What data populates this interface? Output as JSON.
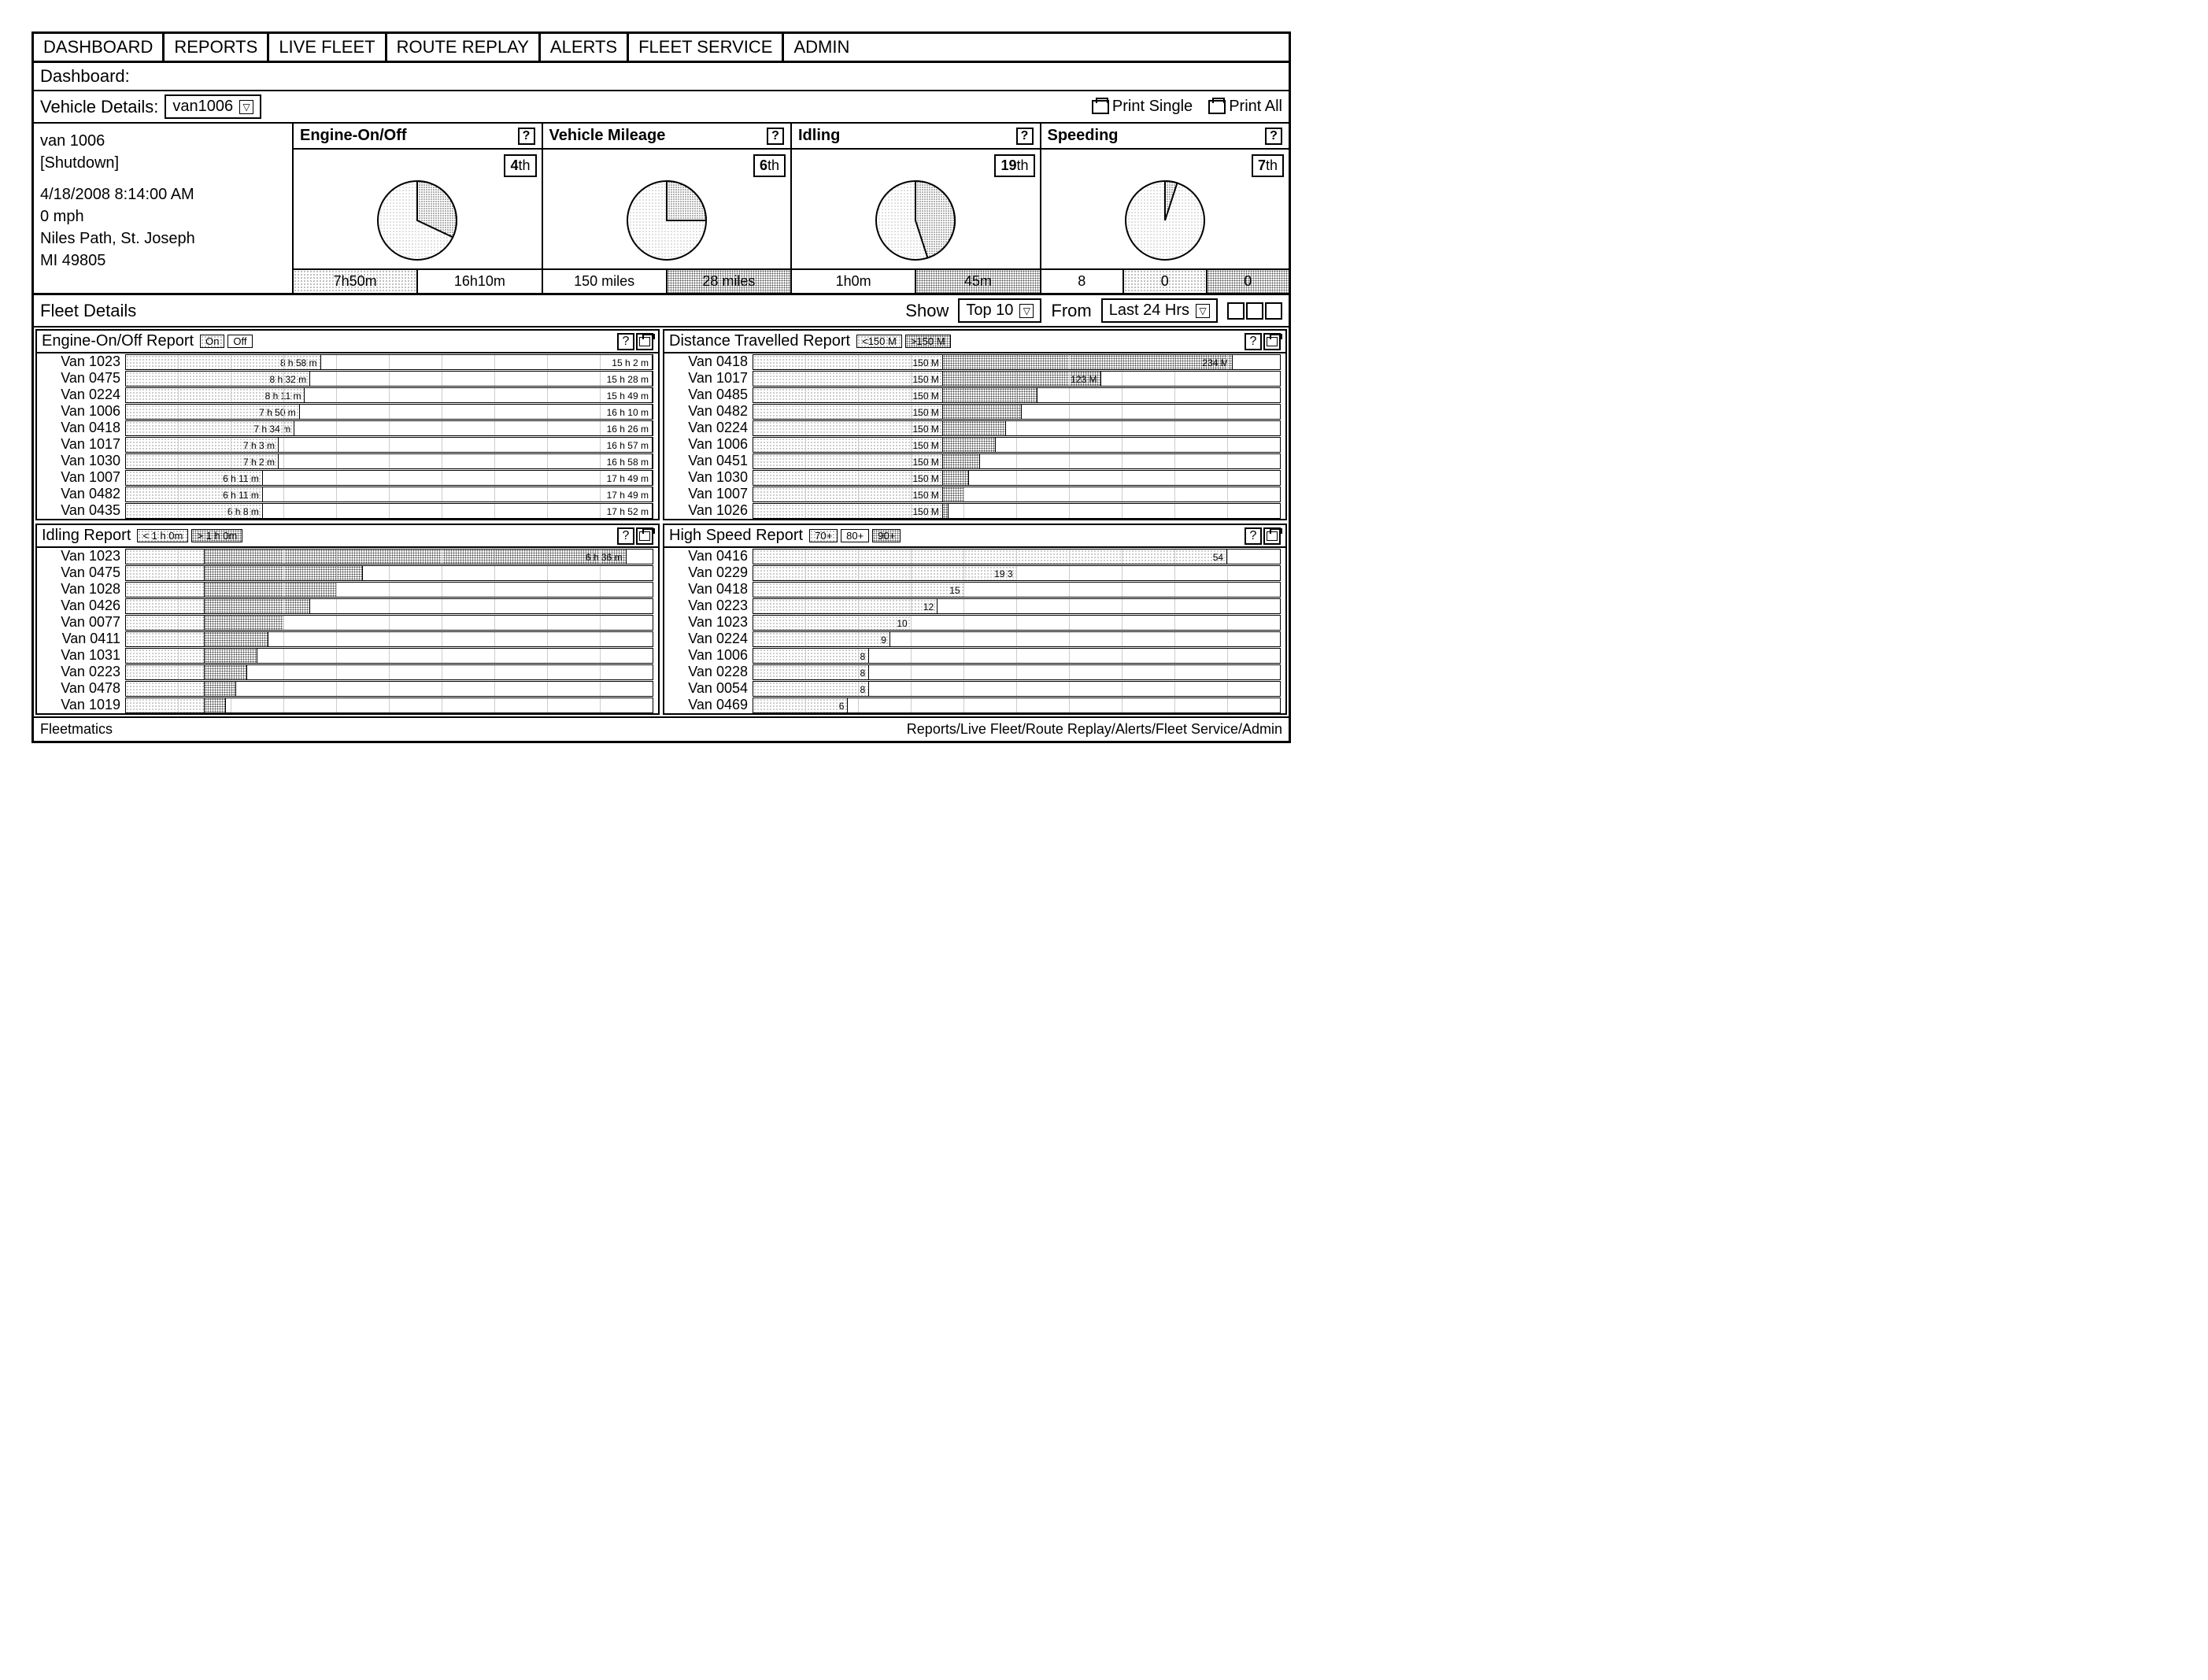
{
  "tabs": [
    "DASHBOARD",
    "REPORTS",
    "LIVE FLEET",
    "ROUTE REPLAY",
    "ALERTS",
    "FLEET SERVICE",
    "ADMIN"
  ],
  "subheader_title": "Dashboard:",
  "vehicle_label": "Vehicle Details:",
  "vehicle_select": "van1006",
  "print_single": "Print Single",
  "print_all": "Print All",
  "vehicle_info": {
    "name": "van 1006",
    "status": "[Shutdown]",
    "datetime": "4/18/2008  8:14:00 AM",
    "speed": "0 mph",
    "addr1": "Niles Path, St. Joseph",
    "addr2": "MI  49805"
  },
  "metrics": [
    {
      "title": "Engine-On/Off",
      "rank": "4",
      "rank_suffix": "th",
      "pie": [
        32,
        68
      ],
      "cells": [
        "7h50m",
        "16h10m"
      ],
      "cell_styles": [
        "dotted-light",
        ""
      ]
    },
    {
      "title": "Vehicle Mileage",
      "rank": "6",
      "rank_suffix": "th",
      "pie": [
        25,
        75
      ],
      "cells": [
        "150 miles",
        "28 miles"
      ],
      "cell_styles": [
        "",
        "dotted-dark"
      ]
    },
    {
      "title": "Idling",
      "rank": "19",
      "rank_suffix": "th",
      "pie": [
        45,
        55
      ],
      "cells": [
        "1h0m",
        "45m"
      ],
      "cell_styles": [
        "",
        "dotted-dark"
      ]
    },
    {
      "title": "Speeding",
      "rank": "7",
      "rank_suffix": "th",
      "pie": [
        5,
        95
      ],
      "cells": [
        "8",
        "0",
        "0"
      ],
      "cell_styles": [
        "",
        "dotted-light",
        "dotted-dark"
      ]
    }
  ],
  "fleet_title": "Fleet Details",
  "show_label": "Show",
  "show_value": "Top 10",
  "from_label": "From",
  "from_value": "Last 24 Hrs",
  "reports": {
    "engine": {
      "title": "Engine-On/Off Report",
      "legend": [
        "On",
        "Off"
      ],
      "legend_styles": [
        "dotted-light",
        ""
      ],
      "rows": [
        {
          "label": "Van 1023",
          "on": "8 h 58 m",
          "off": "15 h 2 m",
          "on_pct": 37
        },
        {
          "label": "Van 0475",
          "on": "8 h 32 m",
          "off": "15 h 28 m",
          "on_pct": 35
        },
        {
          "label": "Van 0224",
          "on": "8 h 11 m",
          "off": "15 h 49 m",
          "on_pct": 34
        },
        {
          "label": "Van 1006",
          "on": "7 h 50 m",
          "off": "16 h 10 m",
          "on_pct": 33
        },
        {
          "label": "Van 0418",
          "on": "7 h 34 m",
          "off": "16 h 26 m",
          "on_pct": 32
        },
        {
          "label": "Van 1017",
          "on": "7 h 3 m",
          "off": "16 h 57 m",
          "on_pct": 29
        },
        {
          "label": "Van 1030",
          "on": "7 h 2 m",
          "off": "16 h 58 m",
          "on_pct": 29
        },
        {
          "label": "Van 1007",
          "on": "6 h 11 m",
          "off": "17 h 49 m",
          "on_pct": 26
        },
        {
          "label": "Van 0482",
          "on": "6 h 11 m",
          "off": "17 h 49 m",
          "on_pct": 26
        },
        {
          "label": "Van 0435",
          "on": "6 h 8 m",
          "off": "17 h 52 m",
          "on_pct": 26
        }
      ]
    },
    "distance": {
      "title": "Distance Travelled Report",
      "legend": [
        "<150 M",
        ">150 M"
      ],
      "legend_styles": [
        "dotted-light",
        "dotted-dark"
      ],
      "rows": [
        {
          "label": "Van 0418",
          "a": "150 M",
          "b": "234 M",
          "a_pct": 36,
          "b_pct": 55
        },
        {
          "label": "Van 1017",
          "a": "150 M",
          "b": "123 M",
          "a_pct": 36,
          "b_pct": 30
        },
        {
          "label": "Van 0485",
          "a": "150 M",
          "b": "",
          "a_pct": 36,
          "b_pct": 18
        },
        {
          "label": "Van 0482",
          "a": "150 M",
          "b": "",
          "a_pct": 36,
          "b_pct": 15
        },
        {
          "label": "Van 0224",
          "a": "150 M",
          "b": "",
          "a_pct": 36,
          "b_pct": 12
        },
        {
          "label": "Van 1006",
          "a": "150 M",
          "b": "",
          "a_pct": 36,
          "b_pct": 10
        },
        {
          "label": "Van 0451",
          "a": "150 M",
          "b": "",
          "a_pct": 36,
          "b_pct": 7
        },
        {
          "label": "Van 1030",
          "a": "150 M",
          "b": "",
          "a_pct": 36,
          "b_pct": 5
        },
        {
          "label": "Van 1007",
          "a": "150 M",
          "b": "",
          "a_pct": 36,
          "b_pct": 4
        },
        {
          "label": "Van 1026",
          "a": "150 M",
          "b": "",
          "a_pct": 36,
          "b_pct": 1
        }
      ]
    },
    "idling": {
      "title": "Idling Report",
      "legend": [
        "< 1 h 0m",
        "> 1 h 0m"
      ],
      "legend_styles": [
        "dotted-light",
        "dotted-dark"
      ],
      "rows": [
        {
          "label": "Van 1023",
          "a_pct": 15,
          "b_pct": 80,
          "end": "6 h 36 m"
        },
        {
          "label": "Van 0475",
          "a_pct": 15,
          "b_pct": 30,
          "end": ""
        },
        {
          "label": "Van 1028",
          "a_pct": 15,
          "b_pct": 25,
          "end": ""
        },
        {
          "label": "Van 0426",
          "a_pct": 15,
          "b_pct": 20,
          "end": ""
        },
        {
          "label": "Van 0077",
          "a_pct": 15,
          "b_pct": 15,
          "end": ""
        },
        {
          "label": "Van 0411",
          "a_pct": 15,
          "b_pct": 12,
          "end": ""
        },
        {
          "label": "Van 1031",
          "a_pct": 15,
          "b_pct": 10,
          "end": ""
        },
        {
          "label": "Van 0223",
          "a_pct": 15,
          "b_pct": 8,
          "end": ""
        },
        {
          "label": "Van 0478",
          "a_pct": 15,
          "b_pct": 6,
          "end": ""
        },
        {
          "label": "Van 1019",
          "a_pct": 15,
          "b_pct": 4,
          "end": ""
        }
      ]
    },
    "speed": {
      "title": "High Speed Report",
      "legend": [
        "70+",
        "80+",
        "90+"
      ],
      "legend_styles": [
        "dotted-light",
        "",
        "dotted-dark"
      ],
      "rows": [
        {
          "label": "Van 0416",
          "v": "54",
          "pct": 90
        },
        {
          "label": "Van 0229",
          "v": "19  3",
          "pct": 50
        },
        {
          "label": "Van 0418",
          "v": "15",
          "pct": 40
        },
        {
          "label": "Van 0223",
          "v": "12",
          "pct": 35
        },
        {
          "label": "Van 1023",
          "v": "10",
          "pct": 30
        },
        {
          "label": "Van 0224",
          "v": "9",
          "pct": 26
        },
        {
          "label": "Van 1006",
          "v": "8",
          "pct": 22
        },
        {
          "label": "Van 0228",
          "v": "8",
          "pct": 22
        },
        {
          "label": "Van 0054",
          "v": "8",
          "pct": 22
        },
        {
          "label": "Van 0469",
          "v": "6",
          "pct": 18
        }
      ]
    }
  },
  "footer_brand": "Fleetmatics",
  "footer_links": "Reports/Live Fleet/Route Replay/Alerts/Fleet Service/Admin",
  "colors": {
    "pie_light": "#e8e8e8",
    "pie_dark": "#888888"
  }
}
